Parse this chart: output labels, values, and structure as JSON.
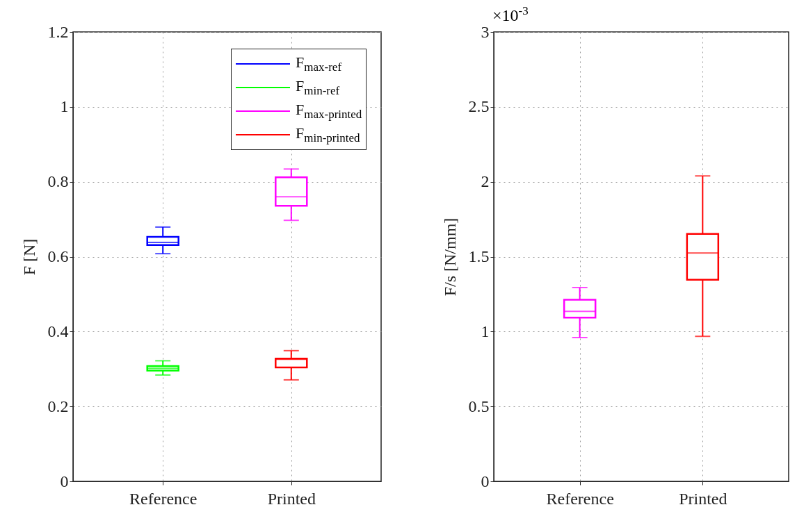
{
  "chart_data": [
    {
      "type": "box",
      "categories": [
        "Reference",
        "Printed"
      ],
      "ylabel": "F [N]",
      "ylim": [
        0,
        1.2
      ],
      "yticks": [
        0,
        0.2,
        0.4,
        0.6,
        0.8,
        1,
        1.2
      ],
      "grid": true,
      "legend": "top right",
      "series": [
        {
          "name": "F$_{max-ref}$",
          "color": "#0000ff",
          "boxes": [
            {
              "low": 0.608,
              "q1": 0.631,
              "median": 0.638,
              "q3": 0.653,
              "high": 0.679
            },
            null
          ]
        },
        {
          "name": "F$_{min-ref}$",
          "color": "#00ff00",
          "boxes": [
            {
              "low": 0.284,
              "q1": 0.296,
              "median": 0.302,
              "q3": 0.308,
              "high": 0.322
            },
            null
          ]
        },
        {
          "name": "F$_{max-printed}$",
          "color": "#ff00ff",
          "boxes": [
            null,
            {
              "low": 0.697,
              "q1": 0.736,
              "median": 0.76,
              "q3": 0.812,
              "high": 0.834
            }
          ]
        },
        {
          "name": "F$_{min-printed}$",
          "color": "#ff0000",
          "boxes": [
            null,
            {
              "low": 0.271,
              "q1": 0.304,
              "median": 0.326,
              "q3": 0.328,
              "high": 0.349
            }
          ]
        }
      ]
    },
    {
      "type": "box",
      "categories": [
        "Reference",
        "Printed"
      ],
      "ylabel": "F/s [N/mm]",
      "ylim": [
        0,
        3
      ],
      "yticks": [
        0,
        0.5,
        1,
        1.5,
        2,
        2.5,
        3
      ],
      "grid": true,
      "annotations": [
        "×10$^{-3}$"
      ],
      "colors": [
        "#ff00ff",
        "#ff0000"
      ],
      "boxes": [
        {
          "low": 0.96,
          "q1": 1.093,
          "median": 1.135,
          "q3": 1.212,
          "high": 1.294
        },
        {
          "low": 0.968,
          "q1": 1.346,
          "median": 1.524,
          "q3": 1.652,
          "high": 2.039
        }
      ]
    }
  ]
}
